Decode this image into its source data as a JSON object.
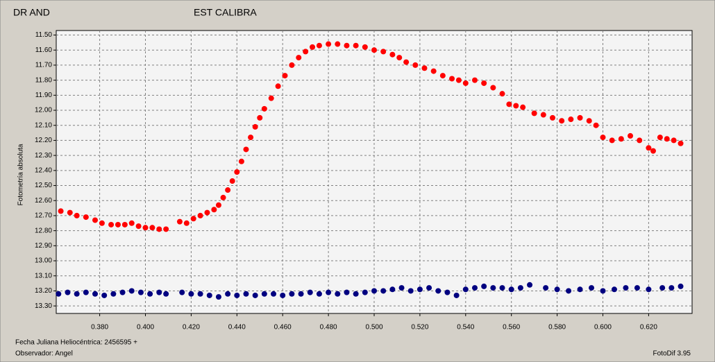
{
  "chart_data": {
    "type": "scatter",
    "series": [
      {
        "name": "DR AND",
        "color": "#ff0000",
        "x": [
          0.363,
          0.367,
          0.37,
          0.374,
          0.378,
          0.381,
          0.385,
          0.388,
          0.391,
          0.394,
          0.397,
          0.4,
          0.403,
          0.406,
          0.409,
          0.415,
          0.418,
          0.421,
          0.424,
          0.427,
          0.43,
          0.432,
          0.434,
          0.436,
          0.438,
          0.44,
          0.442,
          0.444,
          0.446,
          0.448,
          0.45,
          0.452,
          0.455,
          0.458,
          0.461,
          0.464,
          0.467,
          0.47,
          0.473,
          0.476,
          0.48,
          0.484,
          0.488,
          0.492,
          0.496,
          0.5,
          0.504,
          0.508,
          0.511,
          0.514,
          0.518,
          0.522,
          0.526,
          0.53,
          0.534,
          0.537,
          0.54,
          0.544,
          0.548,
          0.552,
          0.556,
          0.559,
          0.562,
          0.565,
          0.57,
          0.574,
          0.578,
          0.582,
          0.586,
          0.59,
          0.594,
          0.597,
          0.6,
          0.604,
          0.608,
          0.612,
          0.616,
          0.62,
          0.622,
          0.625,
          0.628,
          0.631,
          0.634
        ],
        "values": [
          12.67,
          12.68,
          12.7,
          12.71,
          12.73,
          12.75,
          12.76,
          12.76,
          12.76,
          12.75,
          12.77,
          12.78,
          12.78,
          12.79,
          12.79,
          12.74,
          12.75,
          12.72,
          12.7,
          12.68,
          12.66,
          12.63,
          12.58,
          12.53,
          12.47,
          12.41,
          12.34,
          12.26,
          12.18,
          12.11,
          12.05,
          11.99,
          11.92,
          11.84,
          11.77,
          11.7,
          11.65,
          11.61,
          11.58,
          11.57,
          11.56,
          11.56,
          11.57,
          11.57,
          11.58,
          11.6,
          11.61,
          11.63,
          11.65,
          11.68,
          11.7,
          11.72,
          11.74,
          11.77,
          11.79,
          11.8,
          11.82,
          11.8,
          11.82,
          11.85,
          11.89,
          11.96,
          11.97,
          11.98,
          12.02,
          12.03,
          12.05,
          12.07,
          12.06,
          12.05,
          12.07,
          12.1,
          12.18,
          12.2,
          12.19,
          12.17,
          12.2,
          12.25,
          12.27,
          12.18,
          12.19,
          12.2,
          12.22
        ]
      },
      {
        "name": "EST CALIBRA",
        "color": "#000080",
        "x": [
          0.362,
          0.366,
          0.37,
          0.374,
          0.378,
          0.382,
          0.386,
          0.39,
          0.394,
          0.398,
          0.402,
          0.406,
          0.409,
          0.416,
          0.42,
          0.424,
          0.428,
          0.432,
          0.436,
          0.44,
          0.444,
          0.448,
          0.452,
          0.456,
          0.46,
          0.464,
          0.468,
          0.472,
          0.476,
          0.48,
          0.484,
          0.488,
          0.492,
          0.496,
          0.5,
          0.504,
          0.508,
          0.512,
          0.516,
          0.52,
          0.524,
          0.528,
          0.532,
          0.536,
          0.54,
          0.544,
          0.548,
          0.552,
          0.556,
          0.56,
          0.564,
          0.568,
          0.575,
          0.58,
          0.585,
          0.59,
          0.595,
          0.6,
          0.605,
          0.61,
          0.615,
          0.62,
          0.626,
          0.63,
          0.634
        ],
        "values": [
          13.22,
          13.21,
          13.22,
          13.21,
          13.22,
          13.23,
          13.22,
          13.21,
          13.2,
          13.21,
          13.22,
          13.21,
          13.22,
          13.21,
          13.22,
          13.22,
          13.23,
          13.24,
          13.22,
          13.23,
          13.22,
          13.23,
          13.22,
          13.22,
          13.23,
          13.22,
          13.22,
          13.21,
          13.22,
          13.21,
          13.22,
          13.21,
          13.22,
          13.21,
          13.2,
          13.2,
          13.19,
          13.18,
          13.2,
          13.19,
          13.18,
          13.2,
          13.21,
          13.23,
          13.19,
          13.18,
          13.17,
          13.18,
          13.18,
          13.19,
          13.18,
          13.16,
          13.18,
          13.19,
          13.2,
          13.19,
          13.18,
          13.2,
          13.19,
          13.18,
          13.18,
          13.19,
          13.18,
          13.18,
          13.17
        ]
      }
    ],
    "ylabel": "Fotometría absoluta",
    "xlabel": "Fecha Juliana Heliocéntrica: 2456595 +",
    "observer": "Observador: Angel",
    "software": "FotoDif 3.95",
    "xlim": [
      0.361,
      0.639
    ],
    "ylim": [
      11.47,
      13.35
    ],
    "y_inverted": true,
    "grid": true,
    "xticks": [
      {
        "value": 0.38,
        "label": "0.380"
      },
      {
        "value": 0.4,
        "label": "0.400"
      },
      {
        "value": 0.42,
        "label": "0.420"
      },
      {
        "value": 0.44,
        "label": "0.440"
      },
      {
        "value": 0.46,
        "label": "0.460"
      },
      {
        "value": 0.48,
        "label": "0.480"
      },
      {
        "value": 0.5,
        "label": "0.500"
      },
      {
        "value": 0.52,
        "label": "0.520"
      },
      {
        "value": 0.54,
        "label": "0.540"
      },
      {
        "value": 0.56,
        "label": "0.560"
      },
      {
        "value": 0.58,
        "label": "0.580"
      },
      {
        "value": 0.6,
        "label": "0.600"
      },
      {
        "value": 0.62,
        "label": "0.620"
      }
    ],
    "yticks": [
      {
        "value": 11.5,
        "label": "11.50"
      },
      {
        "value": 11.6,
        "label": "11.60"
      },
      {
        "value": 11.7,
        "label": "11.70"
      },
      {
        "value": 11.8,
        "label": "11.80"
      },
      {
        "value": 11.9,
        "label": "11.90"
      },
      {
        "value": 12.0,
        "label": "12.00"
      },
      {
        "value": 12.1,
        "label": "12.10"
      },
      {
        "value": 12.2,
        "label": "12.20"
      },
      {
        "value": 12.3,
        "label": "12.30"
      },
      {
        "value": 12.4,
        "label": "12.40"
      },
      {
        "value": 12.5,
        "label": "12.50"
      },
      {
        "value": 12.6,
        "label": "12.60"
      },
      {
        "value": 12.7,
        "label": "12.70"
      },
      {
        "value": 12.8,
        "label": "12.80"
      },
      {
        "value": 12.9,
        "label": "12.90"
      },
      {
        "value": 13.0,
        "label": "13.00"
      },
      {
        "value": 13.1,
        "label": "13.10"
      },
      {
        "value": 13.2,
        "label": "13.20"
      },
      {
        "value": 13.3,
        "label": "13.30"
      }
    ]
  }
}
